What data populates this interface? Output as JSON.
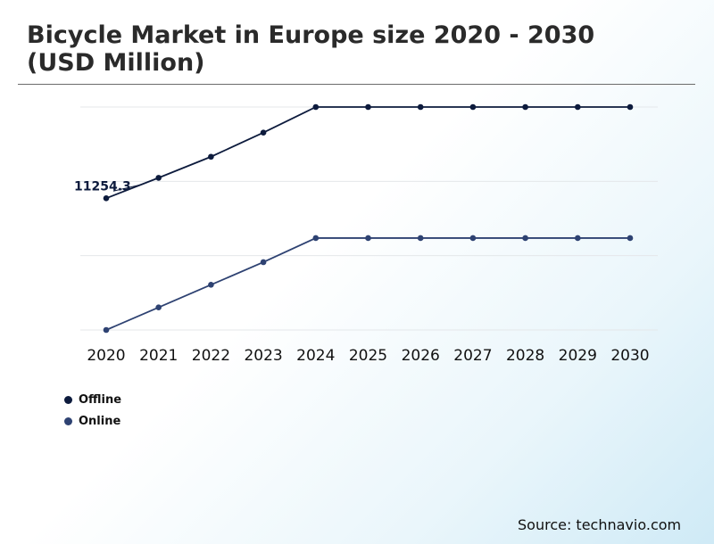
{
  "chart_data": {
    "type": "line",
    "title": "Bicycle Market in Europe size 2020 - 2030 (USD Million)",
    "x": [
      "2020",
      "2021",
      "2022",
      "2023",
      "2024",
      "2025",
      "2026",
      "2027",
      "2028",
      "2029",
      "2030"
    ],
    "series": [
      {
        "name": "Offline",
        "color": "#0d1b3d",
        "values": [
          11254.3,
          11390,
          11530,
          11690,
          11860,
          11860,
          11860,
          11860,
          11860,
          11860,
          11860
        ]
      },
      {
        "name": "Online",
        "color": "#2e4272",
        "values": [
          10380,
          10530,
          10680,
          10830,
          10990,
          10990,
          10990,
          10990,
          10990,
          10990,
          10990
        ]
      }
    ],
    "annotations": [
      {
        "series": 0,
        "index": 0,
        "text": "11254.3"
      }
    ],
    "ylim": [
      10380,
      11860
    ],
    "grid": true,
    "legend": "bottom-left"
  },
  "source": "Source: technavio.com"
}
